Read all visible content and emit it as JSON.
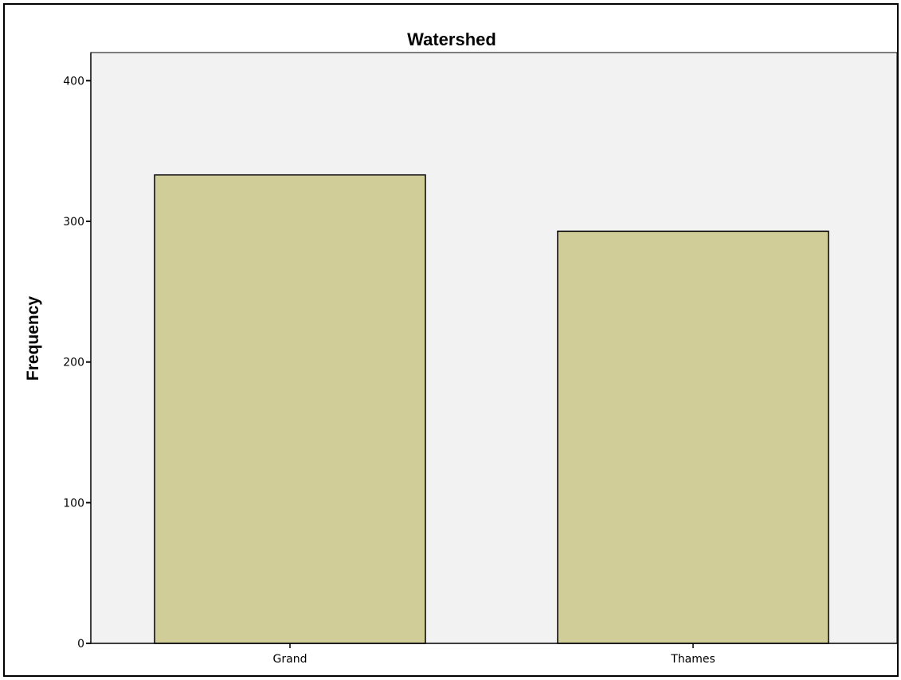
{
  "chart_data": {
    "type": "bar",
    "title": "Watershed",
    "xlabel": "",
    "ylabel": "Frequency",
    "categories": [
      "Grand",
      "Thames"
    ],
    "values": [
      333,
      293
    ],
    "ylim": [
      0,
      420
    ],
    "yticks": [
      0,
      100,
      200,
      300,
      400
    ],
    "grid": false,
    "legend": "none",
    "colors": {
      "bar_fill": "#d0cd98",
      "bar_stroke": "#000000",
      "plot_background": "#f2f2f2",
      "axis": "#000000"
    }
  }
}
